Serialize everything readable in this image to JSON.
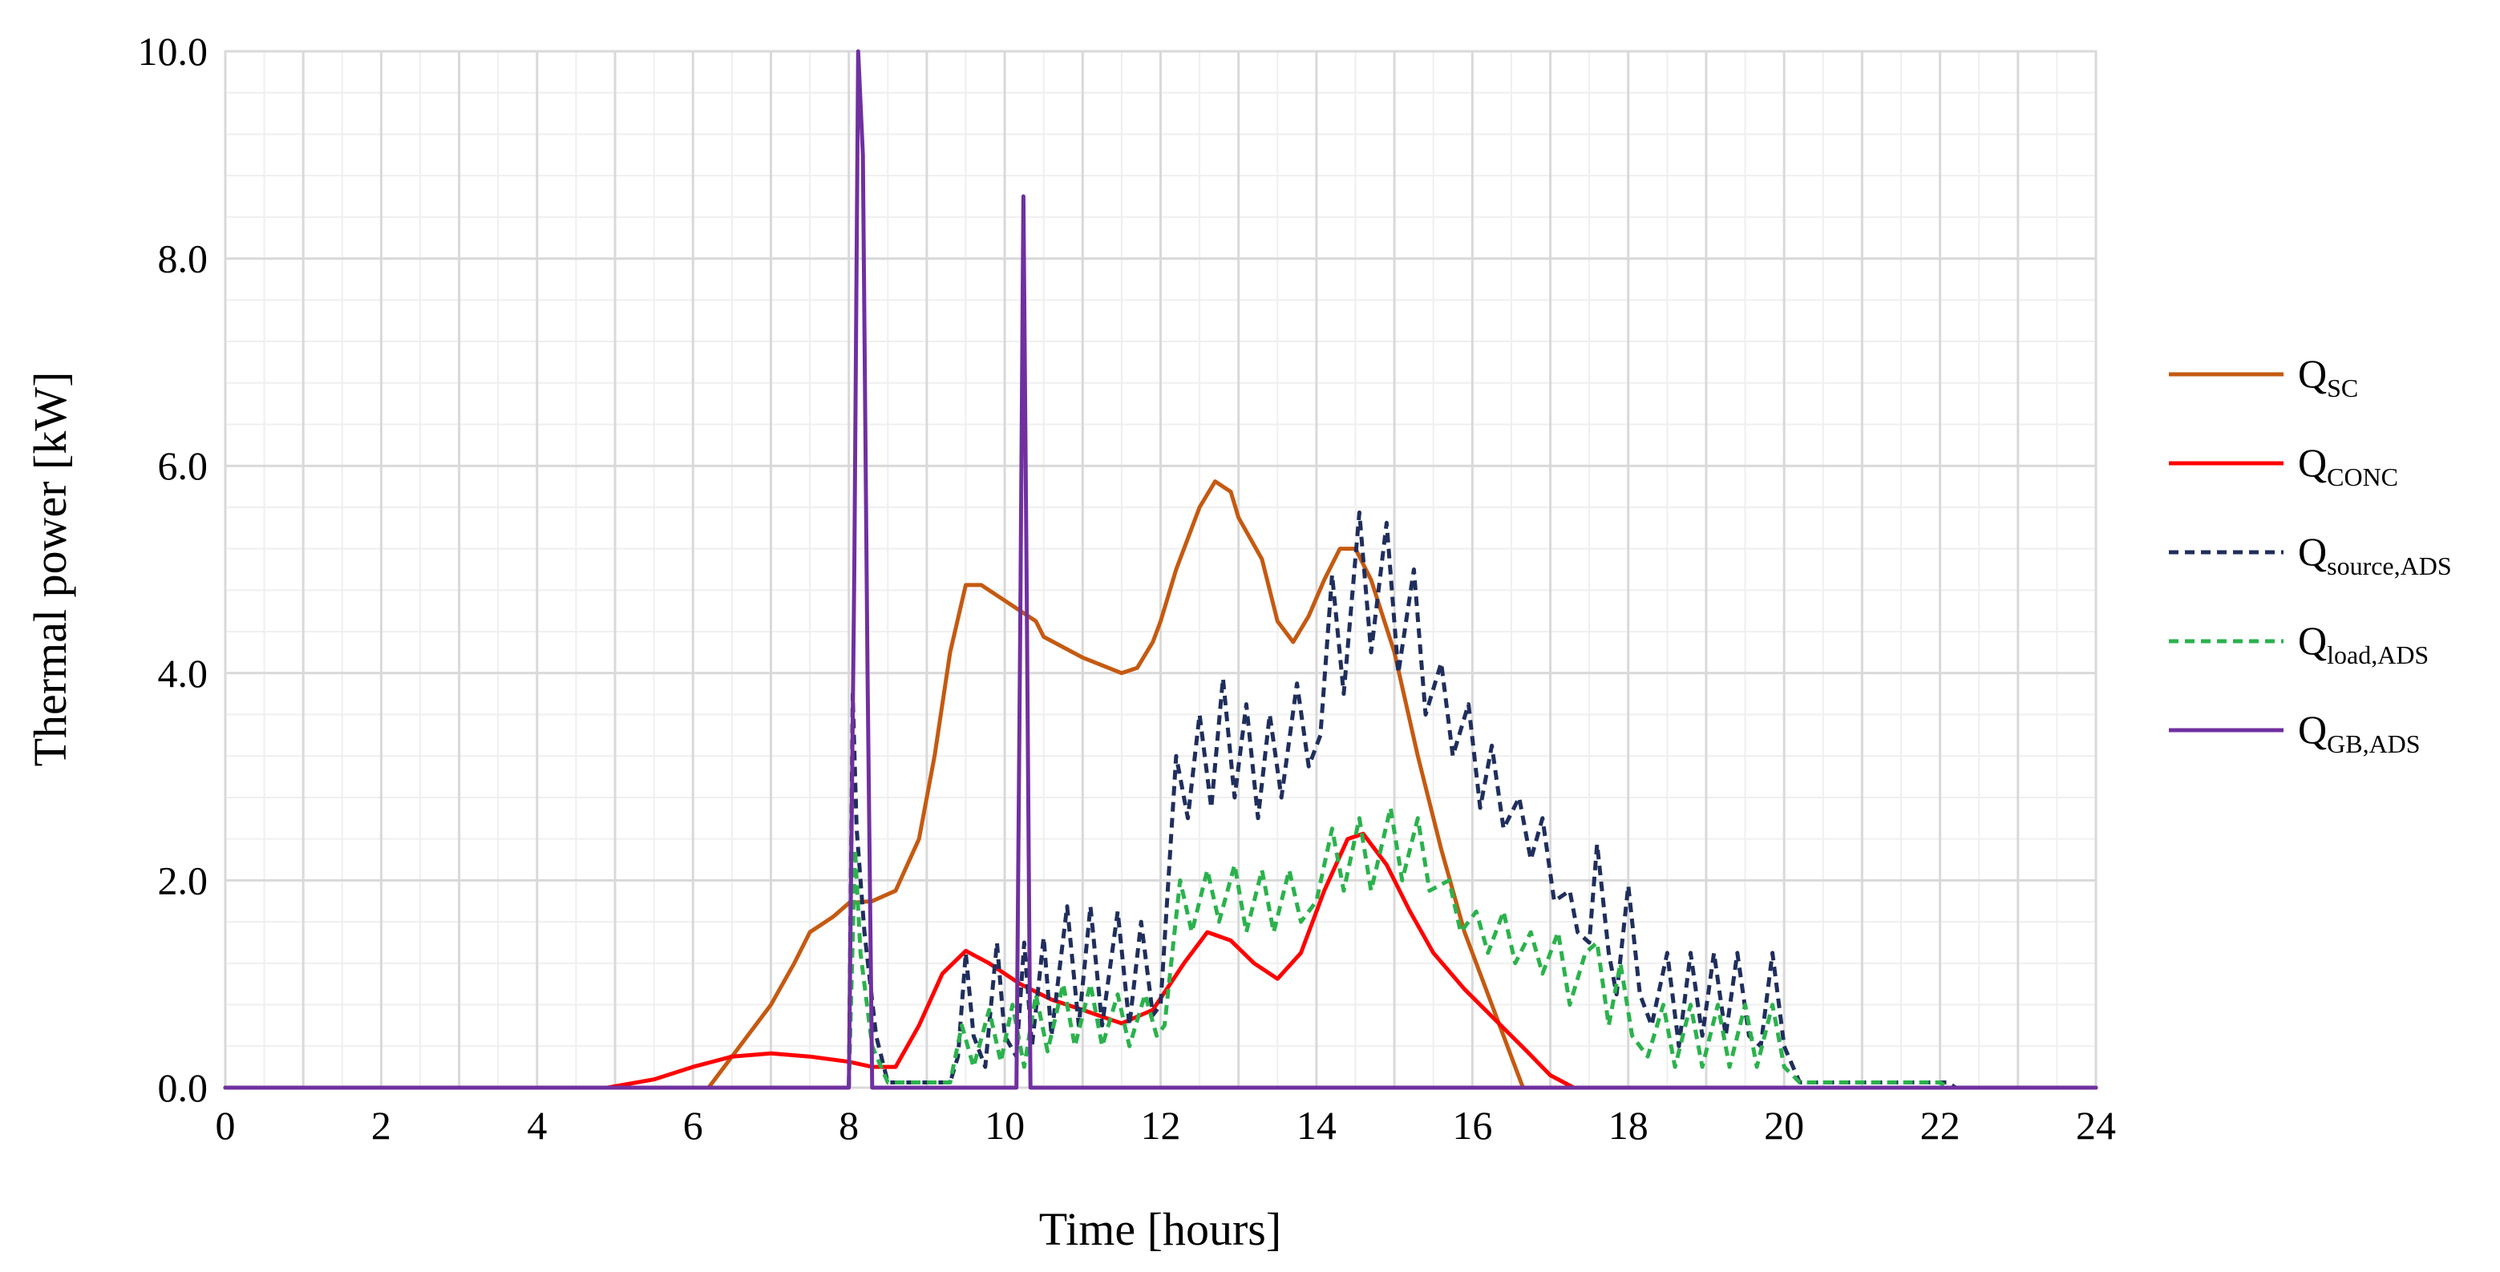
{
  "chart_data": {
    "type": "line",
    "xlabel": "Time [hours]",
    "ylabel": "Thermal power [kW]",
    "xlim": [
      0,
      24
    ],
    "ylim": [
      0,
      10
    ],
    "x_ticks": [
      "0",
      "2",
      "4",
      "6",
      "8",
      "10",
      "12",
      "14",
      "16",
      "18",
      "20",
      "22",
      "24"
    ],
    "y_ticks": [
      "0.0",
      "2.0",
      "4.0",
      "6.0",
      "8.0",
      "10.0"
    ],
    "grid": true,
    "legend_position": "right",
    "series": [
      {
        "name": "Q_SC",
        "label_main": "Q",
        "label_sub": "SC",
        "color": "#C55A11",
        "dash": "solid",
        "points": [
          [
            0,
            0
          ],
          [
            6.2,
            0
          ],
          [
            6.5,
            0.3
          ],
          [
            7.0,
            0.8
          ],
          [
            7.3,
            1.2
          ],
          [
            7.5,
            1.5
          ],
          [
            7.8,
            1.65
          ],
          [
            8.0,
            1.78
          ],
          [
            8.3,
            1.8
          ],
          [
            8.6,
            1.9
          ],
          [
            8.9,
            2.4
          ],
          [
            9.1,
            3.2
          ],
          [
            9.3,
            4.2
          ],
          [
            9.5,
            4.85
          ],
          [
            9.7,
            4.85
          ],
          [
            10.0,
            4.7
          ],
          [
            10.4,
            4.5
          ],
          [
            10.5,
            4.35
          ],
          [
            11.0,
            4.15
          ],
          [
            11.5,
            4.0
          ],
          [
            11.7,
            4.05
          ],
          [
            11.9,
            4.3
          ],
          [
            12.0,
            4.5
          ],
          [
            12.2,
            5.0
          ],
          [
            12.5,
            5.6
          ],
          [
            12.7,
            5.85
          ],
          [
            12.9,
            5.75
          ],
          [
            13.0,
            5.5
          ],
          [
            13.3,
            5.1
          ],
          [
            13.5,
            4.5
          ],
          [
            13.7,
            4.3
          ],
          [
            13.9,
            4.55
          ],
          [
            14.1,
            4.9
          ],
          [
            14.3,
            5.2
          ],
          [
            14.5,
            5.2
          ],
          [
            14.7,
            4.9
          ],
          [
            15.0,
            4.2
          ],
          [
            15.3,
            3.2
          ],
          [
            15.6,
            2.3
          ],
          [
            15.9,
            1.5
          ],
          [
            16.2,
            0.9
          ],
          [
            16.5,
            0.3
          ],
          [
            16.65,
            0
          ],
          [
            24,
            0
          ]
        ]
      },
      {
        "name": "Q_CONC",
        "label_main": "Q",
        "label_sub": "CONC",
        "color": "#FF0000",
        "dash": "solid",
        "points": [
          [
            0,
            0
          ],
          [
            4.9,
            0
          ],
          [
            5.5,
            0.08
          ],
          [
            6.0,
            0.2
          ],
          [
            6.5,
            0.3
          ],
          [
            7.0,
            0.33
          ],
          [
            7.5,
            0.3
          ],
          [
            8.0,
            0.25
          ],
          [
            8.3,
            0.2
          ],
          [
            8.6,
            0.2
          ],
          [
            8.9,
            0.6
          ],
          [
            9.2,
            1.1
          ],
          [
            9.5,
            1.32
          ],
          [
            9.8,
            1.2
          ],
          [
            10.2,
            1.0
          ],
          [
            10.6,
            0.85
          ],
          [
            11.0,
            0.75
          ],
          [
            11.5,
            0.62
          ],
          [
            11.9,
            0.75
          ],
          [
            12.3,
            1.2
          ],
          [
            12.6,
            1.5
          ],
          [
            12.9,
            1.42
          ],
          [
            13.2,
            1.2
          ],
          [
            13.5,
            1.05
          ],
          [
            13.8,
            1.3
          ],
          [
            14.1,
            1.9
          ],
          [
            14.4,
            2.4
          ],
          [
            14.6,
            2.45
          ],
          [
            14.9,
            2.15
          ],
          [
            15.2,
            1.7
          ],
          [
            15.5,
            1.3
          ],
          [
            15.9,
            0.95
          ],
          [
            16.3,
            0.65
          ],
          [
            16.7,
            0.35
          ],
          [
            17.0,
            0.12
          ],
          [
            17.3,
            0
          ],
          [
            24,
            0
          ]
        ]
      },
      {
        "name": "Q_source,ADS",
        "label_main": "Q",
        "label_sub": "source,ADS",
        "color": "#1F2E5C",
        "dash": "dashed",
        "points": [
          [
            0,
            0
          ],
          [
            8.0,
            0
          ],
          [
            8.05,
            3.8
          ],
          [
            8.1,
            2.5
          ],
          [
            8.2,
            1.5
          ],
          [
            8.35,
            0.5
          ],
          [
            8.5,
            0.05
          ],
          [
            9.3,
            0.05
          ],
          [
            9.4,
            0.3
          ],
          [
            9.5,
            1.3
          ],
          [
            9.6,
            0.5
          ],
          [
            9.75,
            0.2
          ],
          [
            9.9,
            1.4
          ],
          [
            10.0,
            0.5
          ],
          [
            10.15,
            0.3
          ],
          [
            10.25,
            1.4
          ],
          [
            10.35,
            0.4
          ],
          [
            10.5,
            1.45
          ],
          [
            10.6,
            0.5
          ],
          [
            10.8,
            1.75
          ],
          [
            10.95,
            0.6
          ],
          [
            11.1,
            1.75
          ],
          [
            11.25,
            0.6
          ],
          [
            11.45,
            1.7
          ],
          [
            11.6,
            0.6
          ],
          [
            11.75,
            1.6
          ],
          [
            11.9,
            0.7
          ],
          [
            12.0,
            0.8
          ],
          [
            12.2,
            3.2
          ],
          [
            12.35,
            2.6
          ],
          [
            12.5,
            3.6
          ],
          [
            12.65,
            2.7
          ],
          [
            12.8,
            3.95
          ],
          [
            12.95,
            2.8
          ],
          [
            13.1,
            3.7
          ],
          [
            13.25,
            2.6
          ],
          [
            13.4,
            3.6
          ],
          [
            13.55,
            2.8
          ],
          [
            13.75,
            3.9
          ],
          [
            13.9,
            3.1
          ],
          [
            14.05,
            3.4
          ],
          [
            14.2,
            4.95
          ],
          [
            14.35,
            3.8
          ],
          [
            14.55,
            5.55
          ],
          [
            14.7,
            4.2
          ],
          [
            14.9,
            5.45
          ],
          [
            15.05,
            4.0
          ],
          [
            15.25,
            5.0
          ],
          [
            15.4,
            3.6
          ],
          [
            15.6,
            4.1
          ],
          [
            15.75,
            3.2
          ],
          [
            15.95,
            3.7
          ],
          [
            16.1,
            2.7
          ],
          [
            16.25,
            3.3
          ],
          [
            16.4,
            2.5
          ],
          [
            16.6,
            2.8
          ],
          [
            16.75,
            2.2
          ],
          [
            16.9,
            2.6
          ],
          [
            17.05,
            1.8
          ],
          [
            17.25,
            1.9
          ],
          [
            17.35,
            1.5
          ],
          [
            17.5,
            1.4
          ],
          [
            17.6,
            2.35
          ],
          [
            17.75,
            1.3
          ],
          [
            17.85,
            0.9
          ],
          [
            18.0,
            1.95
          ],
          [
            18.15,
            0.9
          ],
          [
            18.3,
            0.6
          ],
          [
            18.5,
            1.3
          ],
          [
            18.65,
            0.4
          ],
          [
            18.8,
            1.3
          ],
          [
            18.95,
            0.5
          ],
          [
            19.1,
            1.3
          ],
          [
            19.25,
            0.5
          ],
          [
            19.4,
            1.3
          ],
          [
            19.55,
            0.5
          ],
          [
            19.7,
            0.4
          ],
          [
            19.85,
            1.3
          ],
          [
            20.0,
            0.4
          ],
          [
            20.2,
            0.05
          ],
          [
            22.1,
            0.05
          ],
          [
            22.2,
            0
          ],
          [
            24,
            0
          ]
        ]
      },
      {
        "name": "Q_load,ADS",
        "label_main": "Q",
        "label_sub": "load,ADS",
        "color": "#2BB24C",
        "dash": "dashed",
        "points": [
          [
            0,
            0
          ],
          [
            8.0,
            0
          ],
          [
            8.08,
            2.3
          ],
          [
            8.15,
            1.3
          ],
          [
            8.3,
            0.4
          ],
          [
            8.5,
            0.05
          ],
          [
            9.3,
            0.05
          ],
          [
            9.45,
            0.6
          ],
          [
            9.6,
            0.2
          ],
          [
            9.8,
            0.75
          ],
          [
            9.95,
            0.25
          ],
          [
            10.1,
            0.8
          ],
          [
            10.25,
            0.2
          ],
          [
            10.4,
            0.9
          ],
          [
            10.55,
            0.35
          ],
          [
            10.75,
            1.0
          ],
          [
            10.9,
            0.4
          ],
          [
            11.1,
            1.0
          ],
          [
            11.25,
            0.4
          ],
          [
            11.45,
            0.9
          ],
          [
            11.6,
            0.4
          ],
          [
            11.8,
            0.9
          ],
          [
            11.95,
            0.5
          ],
          [
            12.05,
            0.6
          ],
          [
            12.25,
            2.0
          ],
          [
            12.4,
            1.5
          ],
          [
            12.6,
            2.1
          ],
          [
            12.75,
            1.6
          ],
          [
            12.95,
            2.15
          ],
          [
            13.1,
            1.5
          ],
          [
            13.3,
            2.1
          ],
          [
            13.45,
            1.5
          ],
          [
            13.65,
            2.1
          ],
          [
            13.8,
            1.6
          ],
          [
            14.0,
            1.8
          ],
          [
            14.2,
            2.5
          ],
          [
            14.35,
            1.9
          ],
          [
            14.55,
            2.6
          ],
          [
            14.7,
            1.9
          ],
          [
            14.95,
            2.7
          ],
          [
            15.1,
            2.0
          ],
          [
            15.3,
            2.6
          ],
          [
            15.45,
            1.9
          ],
          [
            15.7,
            2.0
          ],
          [
            15.85,
            1.5
          ],
          [
            16.05,
            1.7
          ],
          [
            16.2,
            1.3
          ],
          [
            16.4,
            1.7
          ],
          [
            16.55,
            1.2
          ],
          [
            16.75,
            1.5
          ],
          [
            16.9,
            1.1
          ],
          [
            17.1,
            1.5
          ],
          [
            17.25,
            0.8
          ],
          [
            17.45,
            1.3
          ],
          [
            17.6,
            1.4
          ],
          [
            17.75,
            0.6
          ],
          [
            17.9,
            1.2
          ],
          [
            18.05,
            0.5
          ],
          [
            18.25,
            0.3
          ],
          [
            18.45,
            0.8
          ],
          [
            18.6,
            0.2
          ],
          [
            18.8,
            0.8
          ],
          [
            18.95,
            0.2
          ],
          [
            19.15,
            0.8
          ],
          [
            19.3,
            0.2
          ],
          [
            19.5,
            0.8
          ],
          [
            19.65,
            0.2
          ],
          [
            19.85,
            0.8
          ],
          [
            20.0,
            0.2
          ],
          [
            20.2,
            0.05
          ],
          [
            22.0,
            0.05
          ],
          [
            22.1,
            0
          ],
          [
            24,
            0
          ]
        ]
      },
      {
        "name": "Q_GB,ADS",
        "label_main": "Q",
        "label_sub": "GB,ADS",
        "color": "#7030A0",
        "dash": "solid",
        "points": [
          [
            0,
            0
          ],
          [
            8.0,
            0
          ],
          [
            8.07,
            5.0
          ],
          [
            8.12,
            10.0
          ],
          [
            8.18,
            9.0
          ],
          [
            8.24,
            4.0
          ],
          [
            8.3,
            0
          ],
          [
            10.15,
            0
          ],
          [
            10.2,
            4.5
          ],
          [
            10.24,
            8.6
          ],
          [
            10.28,
            5.0
          ],
          [
            10.33,
            0
          ],
          [
            24,
            0
          ]
        ]
      }
    ]
  }
}
